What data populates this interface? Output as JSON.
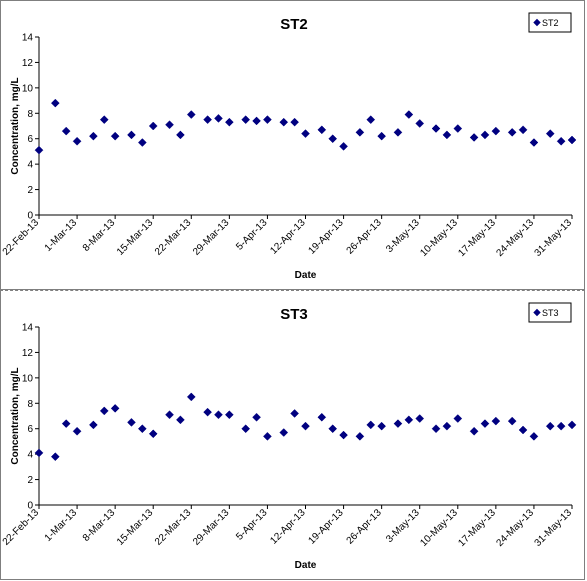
{
  "chart_data": [
    {
      "type": "scatter",
      "title": "ST2",
      "xlabel": "Date",
      "ylabel": "Concentration, mg/L",
      "ylim": [
        0,
        14
      ],
      "yticks": [
        "0",
        "2",
        "4",
        "6",
        "8",
        "10",
        "12",
        "14"
      ],
      "xticks": [
        "22-Feb-13",
        "1-Mar-13",
        "8-Mar-13",
        "15-Mar-13",
        "22-Mar-13",
        "29-Mar-13",
        "5-Apr-13",
        "12-Apr-13",
        "19-Apr-13",
        "26-Apr-13",
        "3-May-13",
        "10-May-13",
        "17-May-13",
        "24-May-13",
        "31-May-13"
      ],
      "grid": false,
      "legend_position": "top-right",
      "color": "#000080",
      "series": [
        {
          "name": "ST2",
          "x": [
            "22-Feb-13",
            "25-Feb-13",
            "27-Feb-13",
            "1-Mar-13",
            "4-Mar-13",
            "6-Mar-13",
            "8-Mar-13",
            "11-Mar-13",
            "13-Mar-13",
            "15-Mar-13",
            "18-Mar-13",
            "20-Mar-13",
            "22-Mar-13",
            "25-Mar-13",
            "27-Mar-13",
            "29-Mar-13",
            "1-Apr-13",
            "3-Apr-13",
            "5-Apr-13",
            "8-Apr-13",
            "10-Apr-13",
            "12-Apr-13",
            "15-Apr-13",
            "17-Apr-13",
            "19-Apr-13",
            "22-Apr-13",
            "24-Apr-13",
            "26-Apr-13",
            "29-Apr-13",
            "1-May-13",
            "3-May-13",
            "6-May-13",
            "8-May-13",
            "10-May-13",
            "13-May-13",
            "15-May-13",
            "17-May-13",
            "20-May-13",
            "22-May-13",
            "24-May-13",
            "27-May-13",
            "29-May-13",
            "31-May-13"
          ],
          "y": [
            5.1,
            8.8,
            6.6,
            5.8,
            6.2,
            7.5,
            6.2,
            6.3,
            5.7,
            7.0,
            7.1,
            6.3,
            7.9,
            7.5,
            7.6,
            7.3,
            7.5,
            7.4,
            7.5,
            7.3,
            7.3,
            6.4,
            6.7,
            6.0,
            5.4,
            6.5,
            7.5,
            6.2,
            6.5,
            7.9,
            7.2,
            6.8,
            6.3,
            6.8,
            6.1,
            6.3,
            6.6,
            6.5,
            6.7,
            5.7,
            6.4,
            5.8,
            5.9
          ]
        }
      ]
    },
    {
      "type": "scatter",
      "title": "ST3",
      "xlabel": "Date",
      "ylabel": "Concentration, mg/L",
      "ylim": [
        0,
        14
      ],
      "yticks": [
        "0",
        "2",
        "4",
        "6",
        "8",
        "10",
        "12",
        "14"
      ],
      "xticks": [
        "22-Feb-13",
        "1-Mar-13",
        "8-Mar-13",
        "15-Mar-13",
        "22-Mar-13",
        "29-Mar-13",
        "5-Apr-13",
        "12-Apr-13",
        "19-Apr-13",
        "26-Apr-13",
        "3-May-13",
        "10-May-13",
        "17-May-13",
        "24-May-13",
        "31-May-13"
      ],
      "grid": false,
      "legend_position": "top-right",
      "color": "#000080",
      "series": [
        {
          "name": "ST3",
          "x": [
            "22-Feb-13",
            "25-Feb-13",
            "27-Feb-13",
            "1-Mar-13",
            "4-Mar-13",
            "6-Mar-13",
            "8-Mar-13",
            "11-Mar-13",
            "13-Mar-13",
            "15-Mar-13",
            "18-Mar-13",
            "20-Mar-13",
            "22-Mar-13",
            "25-Mar-13",
            "27-Mar-13",
            "29-Mar-13",
            "1-Apr-13",
            "3-Apr-13",
            "5-Apr-13",
            "8-Apr-13",
            "10-Apr-13",
            "12-Apr-13",
            "15-Apr-13",
            "17-Apr-13",
            "19-Apr-13",
            "22-Apr-13",
            "24-Apr-13",
            "26-Apr-13",
            "29-Apr-13",
            "1-May-13",
            "3-May-13",
            "6-May-13",
            "8-May-13",
            "10-May-13",
            "13-May-13",
            "15-May-13",
            "17-May-13",
            "20-May-13",
            "22-May-13",
            "24-May-13",
            "27-May-13",
            "29-May-13",
            "31-May-13"
          ],
          "y": [
            4.1,
            3.8,
            6.4,
            5.8,
            6.3,
            7.4,
            7.6,
            6.5,
            6.0,
            5.6,
            7.1,
            6.7,
            8.5,
            7.3,
            7.1,
            7.1,
            6.0,
            6.9,
            5.4,
            5.7,
            7.2,
            6.2,
            6.9,
            6.0,
            5.5,
            5.4,
            6.3,
            6.2,
            6.4,
            6.7,
            6.8,
            6.0,
            6.2,
            6.8,
            5.8,
            6.4,
            6.6,
            6.6,
            5.9,
            5.4,
            6.2,
            6.2,
            6.3
          ]
        }
      ]
    }
  ]
}
